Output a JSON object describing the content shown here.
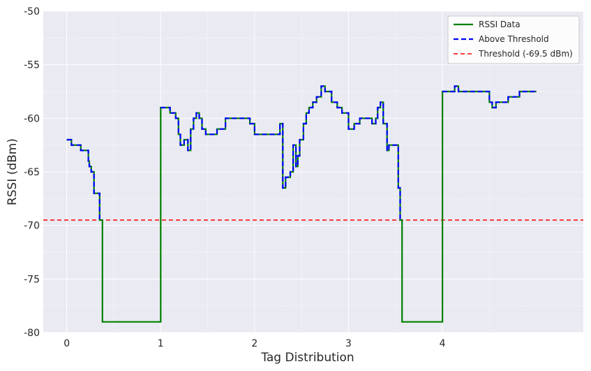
{
  "chart_data": {
    "type": "line",
    "title": "",
    "xlabel": "Tag Distribution",
    "ylabel": "RSSI (dBm)",
    "xlim": [
      -0.25,
      5.5
    ],
    "ylim": [
      -80,
      -50
    ],
    "x_ticks": [
      0,
      1,
      2,
      3,
      4
    ],
    "x_tick_labels": [
      "0",
      "1",
      "2",
      "3",
      "4"
    ],
    "y_ticks": [
      -80,
      -75,
      -70,
      -65,
      -60,
      -55,
      -50
    ],
    "y_tick_labels": [
      "-80",
      "-75",
      "-70",
      "-65",
      "-60",
      "-55",
      "-50"
    ],
    "grid": true,
    "legend_position": "top-right",
    "threshold": -69.5,
    "series": [
      {
        "name": "RSSI Data",
        "color": "#008000",
        "style": "solid",
        "step": "post",
        "x": [
          0.0,
          0.05,
          0.15,
          0.23,
          0.24,
          0.26,
          0.29,
          0.35,
          0.37,
          0.38,
          1.0,
          1.1,
          1.16,
          1.19,
          1.21,
          1.25,
          1.29,
          1.32,
          1.35,
          1.38,
          1.41,
          1.44,
          1.48,
          1.53,
          1.6,
          1.69,
          1.76,
          1.95,
          2.0,
          2.25,
          2.27,
          2.3,
          2.33,
          2.38,
          2.41,
          2.44,
          2.46,
          2.48,
          2.52,
          2.55,
          2.58,
          2.62,
          2.66,
          2.71,
          2.75,
          2.82,
          2.88,
          2.93,
          3.0,
          3.06,
          3.12,
          3.25,
          3.29,
          3.31,
          3.34,
          3.37,
          3.41,
          3.43,
          3.53,
          3.55,
          3.57,
          4.0,
          4.13,
          4.17,
          4.21,
          4.5,
          4.53,
          4.57,
          4.7,
          4.82,
          5.0
        ],
        "y": [
          -62,
          -62.5,
          -63,
          -64,
          -64.5,
          -65,
          -67,
          -69.5,
          -69.5,
          -79,
          -59,
          -59.5,
          -60,
          -61.5,
          -62.5,
          -62,
          -63,
          -61,
          -60,
          -59.5,
          -60,
          -61,
          -61.5,
          -61.5,
          -61,
          -60,
          -60,
          -60.5,
          -61.5,
          -61.5,
          -60.5,
          -66.5,
          -65.5,
          -65,
          -62.5,
          -64.5,
          -63.5,
          -62,
          -60.5,
          -59.5,
          -59,
          -58.5,
          -58,
          -57,
          -57.5,
          -58.5,
          -59,
          -59.5,
          -61,
          -60.5,
          -60,
          -60.5,
          -60,
          -59,
          -58.5,
          -60.5,
          -63,
          -62.5,
          -66.5,
          -69.5,
          -79,
          -57.5,
          -57,
          -57.5,
          -57.5,
          -58.5,
          -59,
          -58.5,
          -58,
          -57.5,
          -57.5
        ]
      },
      {
        "name": "Above Threshold",
        "color": "#0000ff",
        "style": "dashed",
        "step": "post",
        "segments": [
          {
            "x": [
              0.0,
              0.05,
              0.15,
              0.23,
              0.24,
              0.26,
              0.29,
              0.35,
              0.37
            ],
            "y": [
              -62,
              -62.5,
              -63,
              -64,
              -64.5,
              -65,
              -67,
              -69.5,
              -69.5
            ]
          },
          {
            "x": [
              1.0,
              1.1,
              1.16,
              1.19,
              1.21,
              1.25,
              1.29,
              1.32,
              1.35,
              1.38,
              1.41,
              1.44,
              1.48,
              1.53,
              1.6,
              1.69,
              1.76,
              1.95,
              2.0,
              2.25,
              2.27,
              2.3,
              2.33,
              2.38,
              2.41,
              2.44,
              2.46,
              2.48,
              2.52,
              2.55,
              2.58,
              2.62,
              2.66,
              2.71,
              2.75,
              2.82,
              2.88,
              2.93,
              3.0,
              3.06,
              3.12,
              3.25,
              3.29,
              3.31,
              3.34,
              3.37,
              3.41,
              3.43,
              3.53,
              3.55
            ],
            "y": [
              -59,
              -59.5,
              -60,
              -61.5,
              -62.5,
              -62,
              -63,
              -61,
              -60,
              -59.5,
              -60,
              -61,
              -61.5,
              -61.5,
              -61,
              -60,
              -60,
              -60.5,
              -61.5,
              -61.5,
              -60.5,
              -66.5,
              -65.5,
              -65,
              -62.5,
              -64.5,
              -63.5,
              -62,
              -60.5,
              -59.5,
              -59,
              -58.5,
              -58,
              -57,
              -57.5,
              -58.5,
              -59,
              -59.5,
              -61,
              -60.5,
              -60,
              -60.5,
              -60,
              -59,
              -58.5,
              -60.5,
              -63,
              -62.5,
              -66.5,
              -69.5
            ]
          },
          {
            "x": [
              4.0,
              4.13,
              4.17,
              4.21,
              4.5,
              4.53,
              4.57,
              4.7,
              4.82,
              5.0
            ],
            "y": [
              -57.5,
              -57,
              -57.5,
              -57.5,
              -58.5,
              -59,
              -58.5,
              -58,
              -57.5,
              -57.5
            ]
          }
        ]
      }
    ],
    "reference_lines": [
      {
        "name": "Threshold (-69.5 dBm)",
        "y": -69.5,
        "color": "#ff0000",
        "style": "dashed"
      }
    ],
    "legend": [
      {
        "label": "RSSI Data",
        "color": "#008000",
        "style": "solid"
      },
      {
        "label": "Above Threshold",
        "color": "#0000ff",
        "style": "dashed"
      },
      {
        "label": "Threshold (-69.5 dBm)",
        "color": "#ff0000",
        "style": "dashed"
      }
    ],
    "colors": {
      "plot_background": "#eaeaf2",
      "grid": "#ffffff",
      "text": "#262626"
    }
  }
}
